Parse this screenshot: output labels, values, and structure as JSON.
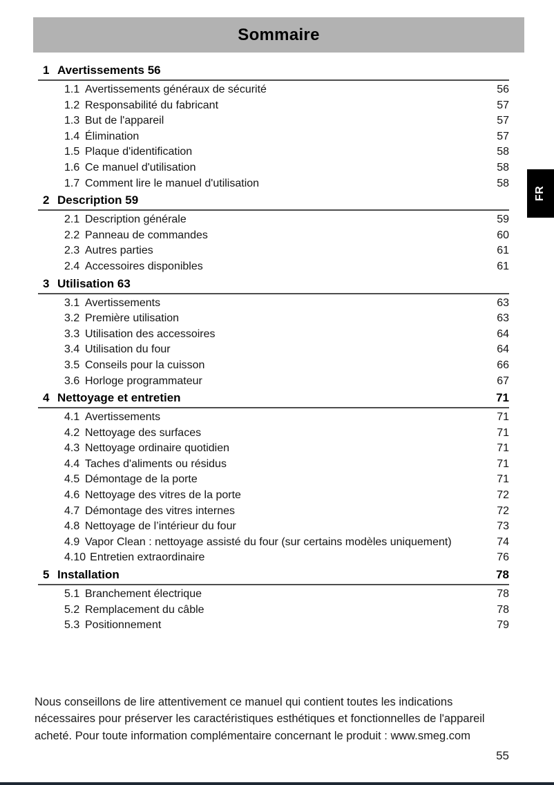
{
  "header": {
    "title": "Sommaire",
    "language_tab": "FR"
  },
  "colors": {
    "title_bar_bg": "#b2b2b2",
    "language_tab_bg": "#000000",
    "language_tab_text": "#ffffff",
    "bottom_bar": "#1e2733",
    "text": "#141414"
  },
  "toc": {
    "sections": [
      {
        "number": "1",
        "title": "Avertissements 56",
        "page": "",
        "entries": [
          {
            "number": "1.1",
            "title": "Avertissements généraux de sécurité",
            "page": "56"
          },
          {
            "number": "1.2",
            "title": "Responsabilité du fabricant",
            "page": "57"
          },
          {
            "number": "1.3",
            "title": "But de l'appareil",
            "page": "57"
          },
          {
            "number": "1.4",
            "title": "Élimination",
            "page": "57"
          },
          {
            "number": "1.5",
            "title": "Plaque d'identification",
            "page": "58"
          },
          {
            "number": "1.6",
            "title": "Ce manuel d'utilisation",
            "page": "58"
          },
          {
            "number": "1.7",
            "title": "Comment lire le manuel d'utilisation",
            "page": "58"
          }
        ]
      },
      {
        "number": "2",
        "title": "Description 59",
        "page": "",
        "entries": [
          {
            "number": "2.1",
            "title": "Description générale",
            "page": "59"
          },
          {
            "number": "2.2",
            "title": "Panneau de commandes",
            "page": "60"
          },
          {
            "number": "2.3",
            "title": "Autres parties",
            "page": "61"
          },
          {
            "number": "2.4",
            "title": "Accessoires disponibles",
            "page": "61"
          }
        ]
      },
      {
        "number": "3",
        "title": "Utilisation 63",
        "page": "",
        "entries": [
          {
            "number": "3.1",
            "title": "Avertissements",
            "page": "63"
          },
          {
            "number": "3.2",
            "title": "Première utilisation",
            "page": "63"
          },
          {
            "number": "3.3",
            "title": "Utilisation des accessoires",
            "page": "64"
          },
          {
            "number": "3.4",
            "title": "Utilisation du four",
            "page": "64"
          },
          {
            "number": "3.5",
            "title": "Conseils pour la cuisson",
            "page": "66"
          },
          {
            "number": "3.6",
            "title": "Horloge programmateur",
            "page": "67"
          }
        ]
      },
      {
        "number": "4",
        "title": "Nettoyage et entretien",
        "page": "71",
        "entries": [
          {
            "number": "4.1",
            "title": "Avertissements",
            "page": "71"
          },
          {
            "number": "4.2",
            "title": "Nettoyage des surfaces",
            "page": "71"
          },
          {
            "number": "4.3",
            "title": "Nettoyage ordinaire quotidien",
            "page": "71"
          },
          {
            "number": "4.4",
            "title": "Taches d'aliments ou résidus",
            "page": "71"
          },
          {
            "number": "4.5",
            "title": "Démontage de la porte",
            "page": "71"
          },
          {
            "number": "4.6",
            "title": "Nettoyage des vitres de la porte",
            "page": "72"
          },
          {
            "number": "4.7",
            "title": "Démontage des vitres internes",
            "page": "72"
          },
          {
            "number": "4.8",
            "title": "Nettoyage de l’intérieur du four",
            "page": "73"
          },
          {
            "number": "4.9",
            "title": "Vapor Clean : nettoyage assisté du four (sur certains modèles uniquement)",
            "page": "74"
          },
          {
            "number": "4.10",
            "title": "Entretien extraordinaire",
            "page": "76"
          }
        ]
      },
      {
        "number": "5",
        "title": "Installation",
        "page": "78",
        "entries": [
          {
            "number": "5.1",
            "title": "Branchement électrique",
            "page": "78"
          },
          {
            "number": "5.2",
            "title": "Remplacement du câble",
            "page": "78"
          },
          {
            "number": "5.3",
            "title": "Positionnement",
            "page": "79"
          }
        ]
      }
    ]
  },
  "footer": {
    "lines": [
      "Nous conseillons de lire attentivement ce manuel qui contient toutes les indications",
      "nécessaires pour préserver les caractéristiques esthétiques et fonctionnelles de l'appareil",
      "acheté. Pour toute information complémentaire concernant le produit : www.smeg.com"
    ],
    "page_number": "55"
  }
}
